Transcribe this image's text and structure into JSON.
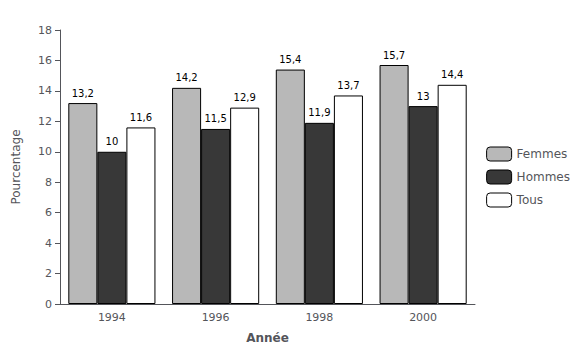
{
  "chart_data": {
    "type": "bar",
    "xlabel": "Année",
    "ylabel": "Pourcentage",
    "categories": [
      "1994",
      "1996",
      "1998",
      "2000"
    ],
    "series": [
      {
        "name": "Femmes",
        "color": "#b8b8b8",
        "values": [
          13.2,
          14.2,
          15.4,
          15.7
        ],
        "value_labels": [
          "13,2",
          "14,2",
          "15,4",
          "15,7"
        ]
      },
      {
        "name": "Hommes",
        "color": "#383838",
        "values": [
          10,
          11.5,
          11.9,
          13
        ],
        "value_labels": [
          "10",
          "11,5",
          "11,9",
          "13"
        ]
      },
      {
        "name": "Tous",
        "color": "#ffffff",
        "values": [
          11.6,
          12.9,
          13.7,
          14.4
        ],
        "value_labels": [
          "11,6",
          "12,9",
          "13,7",
          "14,4"
        ]
      }
    ],
    "ylim": [
      0,
      18
    ],
    "yticks": [
      0,
      2,
      4,
      6,
      8,
      10,
      12,
      14,
      16,
      18
    ],
    "grid": false,
    "legend": "right",
    "data_labels": true
  }
}
